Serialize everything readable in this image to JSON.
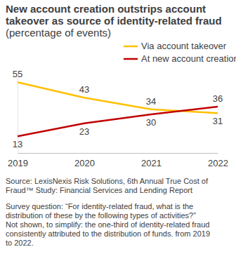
{
  "chart_data": {
    "type": "line",
    "title": "New account creation outstrips account takeover as source of identity-related fraud",
    "subtitle": "(percentage of events)",
    "categories": [
      "2019",
      "2020",
      "2021",
      "2022"
    ],
    "series": [
      {
        "name": "Via account takeover",
        "color": "#ffc000",
        "values": [
          55,
          43,
          34,
          31
        ]
      },
      {
        "name": "At new account creation",
        "color": "#c00000",
        "values": [
          13,
          23,
          30,
          36
        ]
      }
    ],
    "ylim": [
      0,
      60
    ],
    "legend": "upper right",
    "data_labels": true,
    "tick_labels": "x",
    "source": "Source: LexisNexis Risk Solutions, 6th Annual True Cost of Fraud™ Study: Financial Services and Lending Report",
    "notes": [
      "Survey question: “For identity-related fraud, what is the distribution of these by the following types of activities?”",
      "Not shown, to simplify: the one-third of identity-related fraud consistently attributed to the distribution of funds. from 2019 to 2022."
    ]
  }
}
